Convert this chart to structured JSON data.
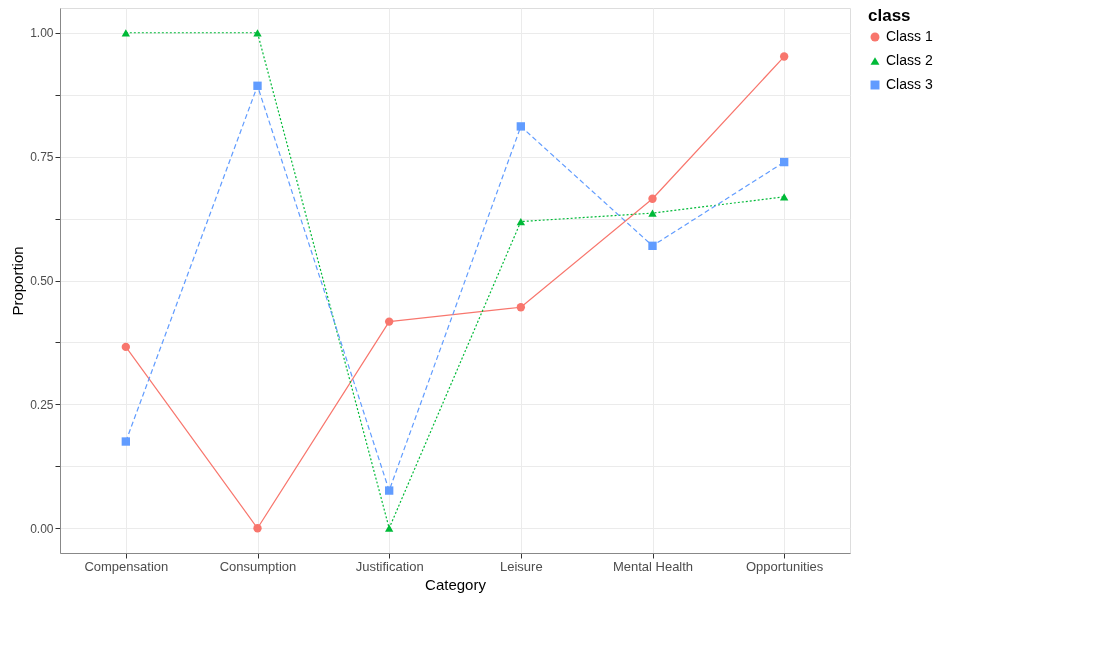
{
  "chart_data": {
    "type": "line",
    "xlabel": "Category",
    "ylabel": "Proportion",
    "legend_title": "class",
    "categories": [
      "Compensation",
      "Consumption",
      "Justification",
      "Leisure",
      "Mental Health",
      "Opportunities"
    ],
    "series": [
      {
        "name": "Class 1",
        "color": "#f8766d",
        "marker": "circle",
        "line_style": "solid",
        "values": [
          0.366,
          0.0,
          0.417,
          0.446,
          0.665,
          0.952
        ]
      },
      {
        "name": "Class 2",
        "color": "#00ba38",
        "marker": "triangle",
        "line_style": "dotted",
        "values": [
          1.0,
          1.0,
          0.0,
          0.619,
          0.636,
          0.669
        ]
      },
      {
        "name": "Class 3",
        "color": "#619cff",
        "marker": "square",
        "line_style": "dashed",
        "values": [
          0.175,
          0.893,
          0.076,
          0.811,
          0.57,
          0.739
        ]
      }
    ],
    "ylim": [
      -0.05,
      1.05
    ],
    "yticks": [
      {
        "value": 0.0,
        "label": "0.00"
      },
      {
        "value": 0.125,
        "label": null
      },
      {
        "value": 0.25,
        "label": "0.25"
      },
      {
        "value": 0.375,
        "label": null
      },
      {
        "value": 0.5,
        "label": "0.50"
      },
      {
        "value": 0.625,
        "label": null
      },
      {
        "value": 0.75,
        "label": "0.75"
      },
      {
        "value": 0.875,
        "label": null
      },
      {
        "value": 1.0,
        "label": "1.00"
      }
    ],
    "grid": true,
    "legend": "right"
  }
}
